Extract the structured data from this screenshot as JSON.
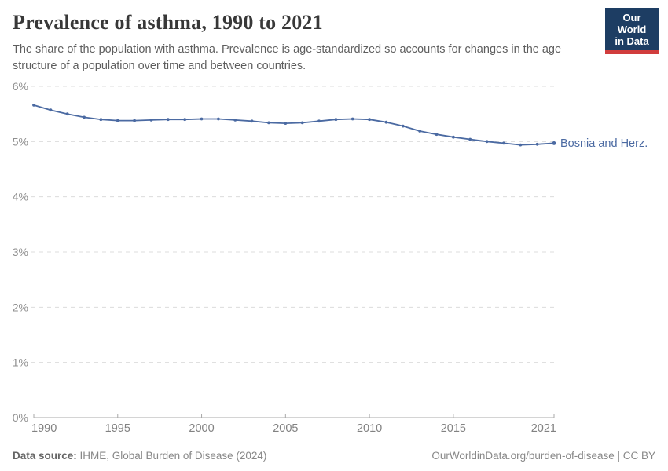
{
  "header": {
    "title": "Prevalence of asthma, 1990 to 2021",
    "subtitle": "The share of the population with asthma. Prevalence is age-standardized so accounts for changes in the age structure of a population over time and between countries.",
    "logo": {
      "line1": "Our World",
      "line2": "in Data",
      "bg_color": "#1d3d63",
      "accent_color": "#d13d3d"
    }
  },
  "chart_data": {
    "type": "line",
    "title": "Prevalence of asthma, 1990 to 2021",
    "xlabel": "",
    "ylabel": "",
    "xlim": [
      1990,
      2021
    ],
    "ylim": [
      0,
      6
    ],
    "grid": "horizontal-dashed",
    "legend_position": "right-of-line-end",
    "x_ticks": [
      1990,
      1995,
      2000,
      2005,
      2010,
      2015,
      2021
    ],
    "y_tick_labels": [
      "0%",
      "1%",
      "2%",
      "3%",
      "4%",
      "5%",
      "6%"
    ],
    "series": [
      {
        "name": "Bosnia and Herz.",
        "color": "#4b6aa2",
        "x": [
          1990,
          1991,
          1992,
          1993,
          1994,
          1995,
          1996,
          1997,
          1998,
          1999,
          2000,
          2001,
          2002,
          2003,
          2004,
          2005,
          2006,
          2007,
          2008,
          2009,
          2010,
          2011,
          2012,
          2013,
          2014,
          2015,
          2016,
          2017,
          2018,
          2019,
          2020,
          2021
        ],
        "values": [
          5.66,
          5.57,
          5.5,
          5.44,
          5.4,
          5.38,
          5.38,
          5.39,
          5.4,
          5.4,
          5.41,
          5.41,
          5.39,
          5.37,
          5.34,
          5.33,
          5.34,
          5.37,
          5.4,
          5.41,
          5.4,
          5.35,
          5.28,
          5.19,
          5.13,
          5.08,
          5.04,
          5.0,
          4.97,
          4.94,
          4.95,
          4.97
        ]
      }
    ],
    "colors": {
      "gridline": "#dcdcdc",
      "axis_line": "#a8a8a8",
      "y_tick_text": "#8f8f8f",
      "x_tick_text": "#828282"
    }
  },
  "footer": {
    "source_label": "Data source:",
    "source_text": " IHME, Global Burden of Disease (2024)",
    "link_text": "OurWorldinData.org/burden-of-disease | CC BY"
  }
}
